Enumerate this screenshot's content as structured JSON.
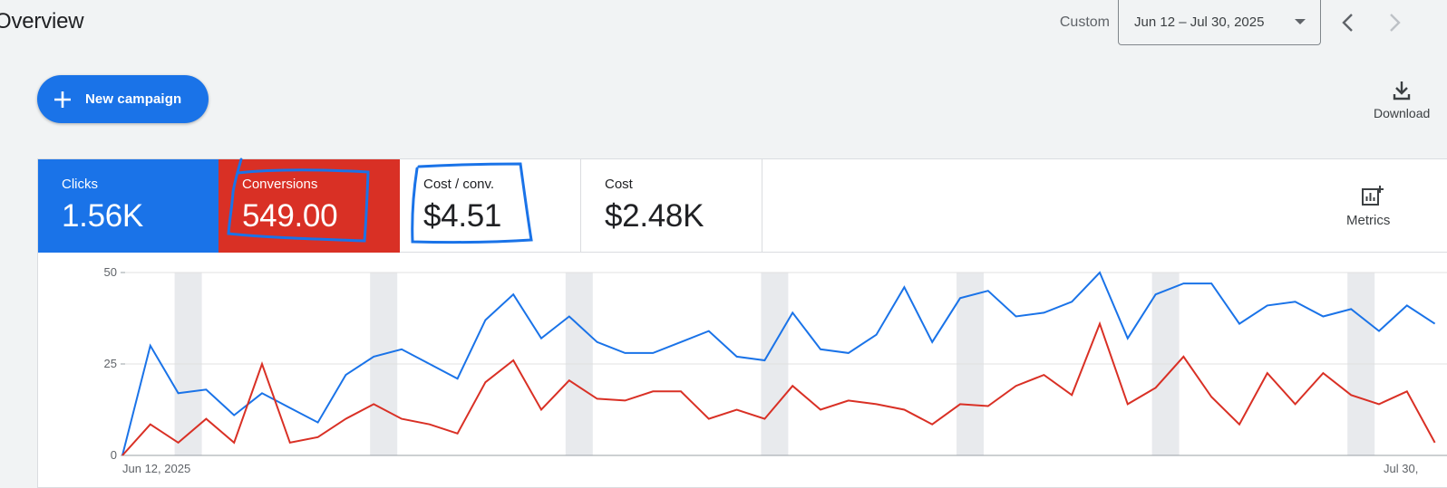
{
  "header": {
    "title": "Overview",
    "range_label": "Custom",
    "date_range": "Jun 12 – Jul 30, 2025"
  },
  "toolbar": {
    "new_campaign_label": "New campaign",
    "download_label": "Download"
  },
  "metric_tiles": [
    {
      "label": "Clicks",
      "value": "1.56K",
      "color": "#1a73e8",
      "selected": true
    },
    {
      "label": "Conversions",
      "value": "549.00",
      "color": "#d93025",
      "selected": true
    },
    {
      "label": "Cost / conv.",
      "value": "$4.51",
      "selected": false
    },
    {
      "label": "Cost",
      "value": "$2.48K",
      "selected": false
    }
  ],
  "metrics_button_label": "Metrics",
  "chart_data": {
    "type": "line",
    "x_start_label": "Jun 12, 2025",
    "x_end_label": "Jul 30,",
    "ylim": [
      0,
      50
    ],
    "yticks": [
      0,
      25,
      50
    ],
    "grid": true,
    "weekend_band_colors": "#e8eaed",
    "series": [
      {
        "color": "#1a73e8",
        "values": [
          0,
          30,
          17,
          18,
          11,
          17,
          13,
          9,
          22,
          27,
          29,
          25,
          21,
          37,
          44,
          32,
          38,
          31,
          28,
          28,
          31,
          34,
          27,
          26,
          39,
          29,
          28,
          33,
          46,
          31,
          43,
          45,
          38,
          39,
          42,
          50,
          32,
          44,
          47,
          47,
          36,
          41,
          42,
          38,
          40,
          34,
          41,
          36
        ]
      },
      {
        "color": "#d93025",
        "values": [
          0,
          8.5,
          3.5,
          10,
          3.5,
          25,
          3.5,
          5,
          10,
          14,
          10,
          8.5,
          6,
          20,
          26,
          12.5,
          20.5,
          15.5,
          15,
          17.5,
          17.5,
          10,
          12.5,
          10,
          19,
          12.5,
          15,
          14,
          12.5,
          8.5,
          14,
          13.5,
          19,
          22,
          16.5,
          36,
          14,
          18.5,
          27,
          16,
          8.5,
          22.5,
          14,
          22.5,
          16.5,
          14,
          17.5,
          3.5
        ]
      }
    ]
  },
  "annotation_color": "#1a73e8"
}
